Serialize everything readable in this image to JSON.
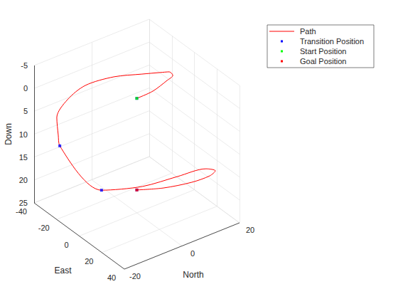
{
  "chart_data": {
    "type": "line3d",
    "xlabel": "North",
    "ylabel": "East",
    "zlabel": "Down",
    "xlim": [
      -20,
      20
    ],
    "xticks": [
      -20,
      0,
      20
    ],
    "ylim": [
      -40,
      40
    ],
    "yticks": [
      -40,
      -20,
      0,
      20,
      40
    ],
    "zlim": [
      -5,
      25
    ],
    "zticks": [
      -5,
      0,
      5,
      10,
      15,
      20,
      25
    ],
    "grid": true,
    "legend": "northeast",
    "series": [
      {
        "name": "Path",
        "type": "line",
        "color": "#ff0000",
        "x": [
          0,
          5.8,
          12.3,
          15.1,
          15.4,
          13.1,
          9.3,
          2.8,
          -4.8,
          -10.4,
          -14,
          -14.9,
          -15,
          -15,
          -4,
          7.7,
          17.1,
          19.3,
          17.2,
          11.9,
          5.2,
          0
        ],
        "y": [
          0,
          -0.6,
          -4.5,
          -6.6,
          -10.5,
          -12.9,
          -19.1,
          -27.6,
          -33.4,
          -35,
          -35.2,
          -31.6,
          -30,
          7,
          15.1,
          16.6,
          17.7,
          20.4,
          20.8,
          18.4,
          10.4,
          0
        ],
        "z": [
          0,
          0,
          0,
          0,
          0,
          0,
          0.5,
          1,
          2,
          4,
          7,
          10,
          12,
          15,
          15.5,
          16,
          16.5,
          17,
          17.5,
          18,
          19,
          20
        ]
      },
      {
        "name": "Transition Position",
        "type": "scatter",
        "marker": "point",
        "color": "#0000ff",
        "x": [
          0,
          -15,
          -15,
          0
        ],
        "y": [
          0,
          -30,
          7,
          0
        ],
        "z": [
          0,
          12,
          15,
          20
        ]
      },
      {
        "name": "Start Position",
        "type": "scatter",
        "marker": "point",
        "color": "#00ff00",
        "x": [
          0
        ],
        "y": [
          0
        ],
        "z": [
          0
        ]
      },
      {
        "name": "Goal Position",
        "type": "scatter",
        "marker": "point",
        "color": "#ff0000",
        "x": [
          0
        ],
        "y": [
          0
        ],
        "z": [
          20
        ]
      }
    ]
  }
}
